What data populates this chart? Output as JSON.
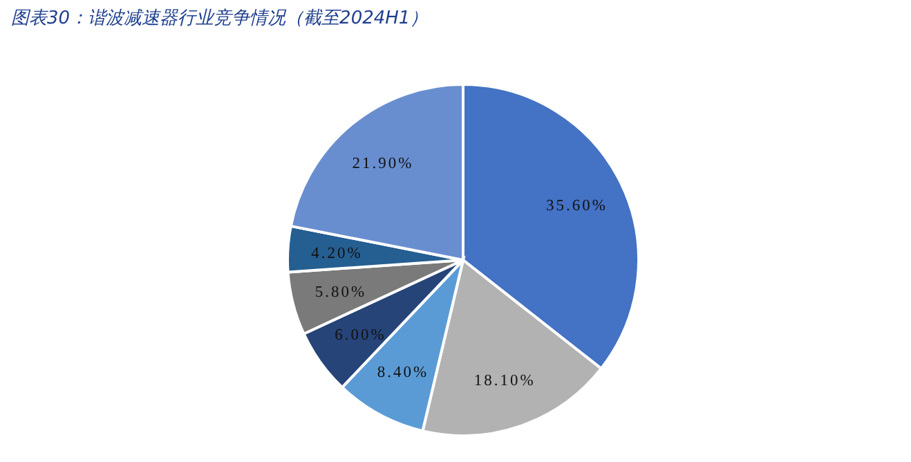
{
  "chart_data": {
    "type": "pie",
    "title": "图表30：谐波减速器行业竞争情况（截至2024H1）",
    "categories": [
      null,
      null,
      null,
      null,
      null,
      null,
      null
    ],
    "values": [
      35.6,
      18.1,
      8.4,
      6.0,
      5.8,
      4.2,
      21.9
    ],
    "value_labels": [
      "35.60%",
      "18.10%",
      "8.40%",
      "6.00%",
      "5.80%",
      "4.20%",
      "21.90%"
    ],
    "colors": [
      "#4472c4",
      "#b2b2b2",
      "#5b9bd5",
      "#264478",
      "#7a7a7a",
      "#255e91",
      "#698ed0"
    ]
  }
}
